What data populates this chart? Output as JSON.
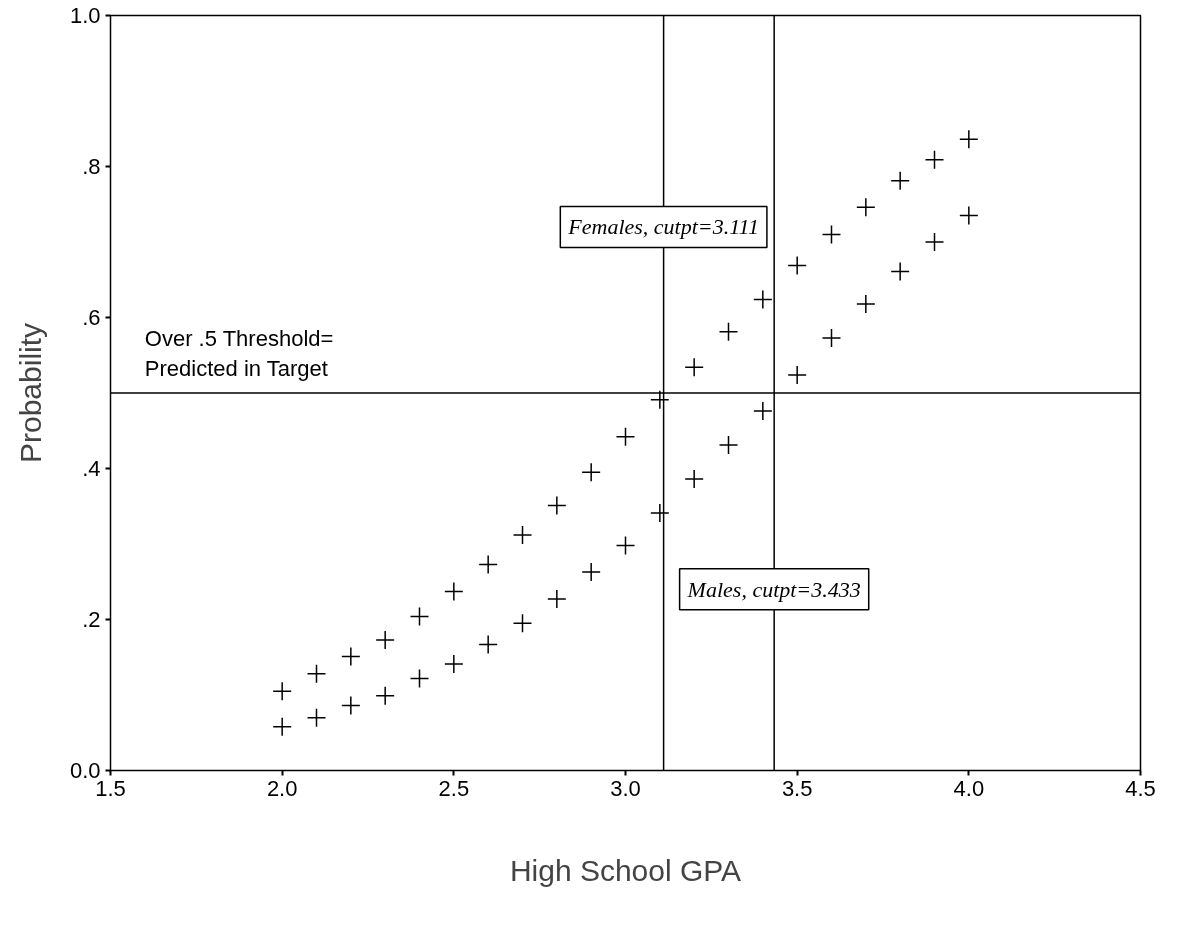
{
  "chart_data": {
    "type": "scatter",
    "xlabel": "High School GPA",
    "ylabel": "Probability",
    "x": [
      2.0,
      2.1,
      2.2,
      2.3,
      2.4,
      2.5,
      2.6,
      2.7,
      2.8,
      2.9,
      3.0,
      3.1,
      3.2,
      3.3,
      3.4,
      3.5,
      3.6,
      3.7,
      3.8,
      3.9,
      4.0
    ],
    "series": [
      {
        "color": "#000000",
        "values": [
          0.105,
          0.128,
          0.151,
          0.173,
          0.204,
          0.237,
          0.273,
          0.312,
          0.351,
          0.395,
          0.442,
          0.491,
          0.534,
          0.581,
          0.624,
          0.669,
          0.71,
          0.746,
          0.781,
          0.809,
          0.836
        ]
      },
      {
        "color": "#000000",
        "values": [
          0.058,
          0.07,
          0.086,
          0.099,
          0.122,
          0.141,
          0.167,
          0.195,
          0.227,
          0.263,
          0.298,
          0.341,
          0.386,
          0.431,
          0.476,
          0.524,
          0.573,
          0.618,
          0.661,
          0.7,
          0.735
        ]
      }
    ],
    "marker": "cross",
    "xlim": [
      1.5,
      4.5
    ],
    "xticks": [
      {
        "value": 1.5,
        "label": "1.5"
      },
      {
        "value": 2,
        "label": "2.0"
      },
      {
        "value": 2.5,
        "label": "2.5"
      },
      {
        "value": 3,
        "label": "3.0"
      },
      {
        "value": 3.5,
        "label": "3.5"
      },
      {
        "value": 4,
        "label": "4.0"
      },
      {
        "value": 4.5,
        "label": "4.5"
      }
    ],
    "ylim": [
      0,
      1
    ],
    "yticks": [
      {
        "value": 0,
        "label": "0.0"
      },
      {
        "value": 0.2,
        "label": ".2"
      },
      {
        "value": 0.4,
        "label": ".4"
      },
      {
        "value": 0.6,
        "label": ".6"
      },
      {
        "value": 0.8,
        "label": ".8"
      },
      {
        "value": 1,
        "label": "1.0"
      }
    ],
    "grid": false,
    "ref_lines": [
      {
        "axis": "y",
        "value": 0.5,
        "label": "Over .5 Threshold=\nPredicted in Target",
        "color": "#000000"
      },
      {
        "axis": "x",
        "value": 3.111,
        "label": "Females, cutpt=3.111",
        "color": "#000000"
      },
      {
        "axis": "x",
        "value": 3.433,
        "label": "Males, cutpt=3.433",
        "color": "#000000"
      }
    ]
  }
}
